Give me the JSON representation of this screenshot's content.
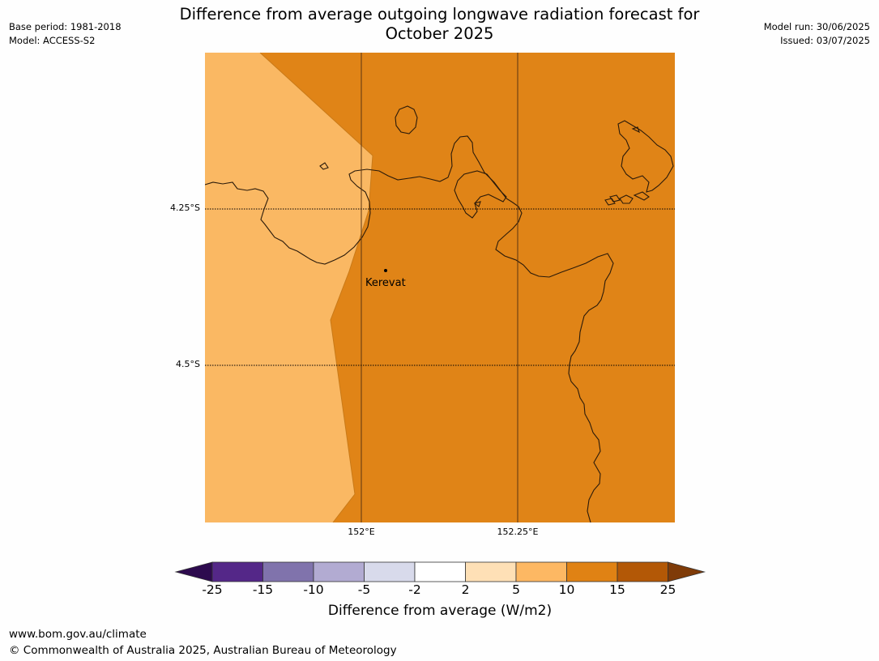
{
  "title": {
    "line1": "Difference from average outgoing longwave radiation forecast for",
    "line2": "October 2025"
  },
  "meta": {
    "base_period": "Base period: 1981-2018",
    "model": "Model: ACCESS-S2",
    "model_run": "Model run: 30/06/2025",
    "issued": "Issued: 03/07/2025"
  },
  "map": {
    "latitude_labels": [
      "4.25°S",
      "4.5°S"
    ],
    "longitude_labels": [
      "152°E",
      "152.25°E"
    ],
    "place": "Kerevat",
    "fill_colors": {
      "5_to_10": "#fab863",
      "10_to_15": "#e08417"
    }
  },
  "colorbar": {
    "title": "Difference from average (W/m2)",
    "ticks": [
      "-25",
      "-15",
      "-10",
      "-5",
      "-2",
      "2",
      "5",
      "10",
      "15",
      "25"
    ],
    "bins": [
      {
        "range": "< -25",
        "color": "#2d0a4e"
      },
      {
        "range": "-25 to -15",
        "color": "#542788"
      },
      {
        "range": "-15 to -10",
        "color": "#8073ac"
      },
      {
        "range": "-10 to -5",
        "color": "#b2abd2"
      },
      {
        "range": "-5 to -2",
        "color": "#d8daeb"
      },
      {
        "range": "-2 to 2",
        "color": "#ffffff"
      },
      {
        "range": "2 to 5",
        "color": "#fee0b6"
      },
      {
        "range": "5 to 10",
        "color": "#fdb863"
      },
      {
        "range": "10 to 15",
        "color": "#e08214"
      },
      {
        "range": "15 to 25",
        "color": "#b35806"
      },
      {
        "range": "> 25",
        "color": "#7f3b08"
      }
    ]
  },
  "footer": {
    "url": "www.bom.gov.au/climate",
    "copyright": "© Commonwealth of Australia 2025, Australian Bureau of Meteorology"
  }
}
